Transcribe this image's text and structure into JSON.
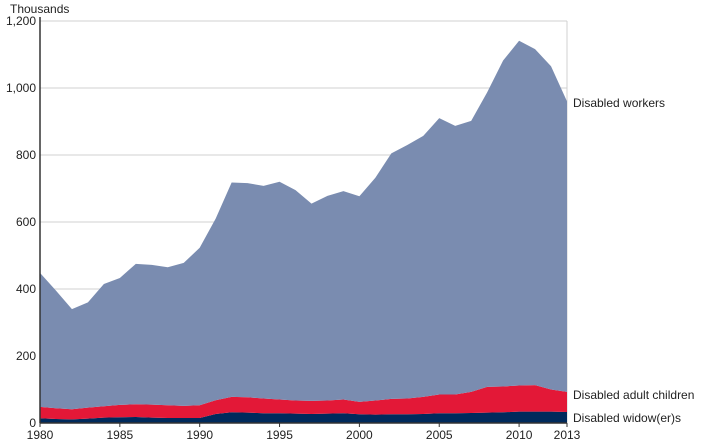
{
  "chart_data": {
    "type": "area",
    "stacked": true,
    "ylabel": "Thousands",
    "xlabel": "",
    "ylim": [
      0,
      1200
    ],
    "xlim": [
      1980,
      2013
    ],
    "yticks": [
      0,
      200,
      400,
      600,
      800,
      1000,
      1200
    ],
    "ytick_labels": [
      "0",
      "200",
      "400",
      "600",
      "800",
      "1,000",
      "1,200"
    ],
    "xticks": [
      1980,
      1985,
      1990,
      1995,
      2000,
      2005,
      2010,
      2013
    ],
    "xtick_labels": [
      "1980",
      "1985",
      "1990",
      "1995",
      "2000",
      "2005",
      "2010",
      "2013"
    ],
    "grid": true,
    "x": [
      1980,
      1981,
      1982,
      1983,
      1984,
      1985,
      1986,
      1987,
      1988,
      1989,
      1990,
      1991,
      1992,
      1993,
      1994,
      1995,
      1996,
      1997,
      1998,
      1999,
      2000,
      2001,
      2002,
      2003,
      2004,
      2005,
      2006,
      2007,
      2008,
      2009,
      2010,
      2011,
      2012,
      2013
    ],
    "series": [
      {
        "name": "Disabled widow(er)s",
        "color": "#002a5c",
        "values": [
          14,
          12,
          11,
          13,
          16,
          17,
          18,
          16,
          15,
          15,
          15,
          27,
          32,
          31,
          29,
          29,
          28,
          27,
          28,
          29,
          26,
          25,
          26,
          26,
          27,
          29,
          29,
          30,
          31,
          32,
          34,
          34,
          34,
          33
        ]
      },
      {
        "name": "Disabled adult children",
        "color": "#e31837",
        "values": [
          34,
          32,
          30,
          33,
          34,
          37,
          38,
          39,
          38,
          36,
          38,
          41,
          46,
          46,
          44,
          41,
          39,
          39,
          39,
          41,
          37,
          42,
          46,
          47,
          51,
          56,
          56,
          63,
          77,
          77,
          78,
          79,
          66,
          60
        ]
      },
      {
        "name": "Disabled workers",
        "color": "#7a8cb0",
        "values": [
          400,
          351,
          299,
          314,
          365,
          379,
          419,
          417,
          412,
          427,
          470,
          542,
          640,
          639,
          635,
          650,
          628,
          589,
          611,
          622,
          614,
          665,
          733,
          757,
          779,
          825,
          802,
          809,
          879,
          973,
          1029,
          1003,
          965,
          867
        ]
      }
    ],
    "label_colors": [
      "#1f3a6e",
      "#e31837",
      "#5e74a0"
    ]
  }
}
